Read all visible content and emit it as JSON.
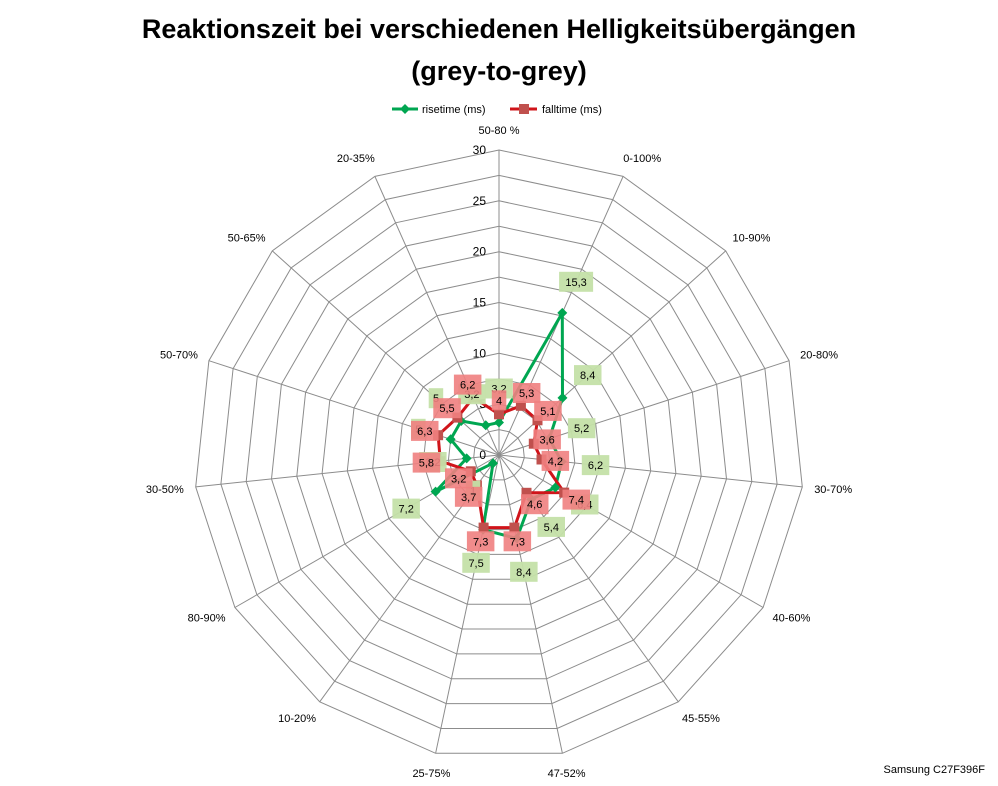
{
  "chart_data": {
    "type": "radar",
    "title_lines": [
      "Reaktionszeit bei verschiedenen Helligkeitsübergängen",
      "(grey-to-grey)"
    ],
    "categories": [
      "50-80 %",
      "0-100%",
      "10-90%",
      "20-80%",
      "30-70%",
      "40-60%",
      "45-55%",
      "47-52%",
      "25-75%",
      "10-20%",
      "80-90%",
      "30-50%",
      "50-70%",
      "50-65%",
      "20-35%"
    ],
    "rlim": [
      0,
      30
    ],
    "ticks": [
      0,
      5,
      10,
      15,
      20,
      25,
      30
    ],
    "tick_labels": [
      "0",
      "5",
      "10",
      "15",
      "20",
      "25",
      "30"
    ],
    "grid": true,
    "legend_position": "top",
    "series": [
      {
        "name": "risetime (ms)",
        "color": "#00a651",
        "label_bg": "#c4e0a8",
        "marker": "diamond",
        "values": [
          3.2,
          15.3,
          8.4,
          5.2,
          6.2,
          6.4,
          5.4,
          8.4,
          7.5,
          1,
          7.2,
          3.2,
          5,
          5,
          3.2
        ],
        "labels": [
          "3,2",
          "15,3",
          "8,4",
          "5,2",
          "6,2",
          "6,4",
          "5,4",
          "8,4",
          "7,5",
          "1",
          "7,2",
          "3,2",
          "5",
          "5",
          "3,2"
        ]
      },
      {
        "name": "falltime (ms)",
        "color": "#d0141a",
        "label_bg": "#f08080",
        "marker": "square",
        "values": [
          4,
          5.3,
          5.1,
          3.6,
          4.2,
          7.4,
          4.6,
          7.3,
          7.3,
          3.7,
          3.2,
          5.8,
          6.3,
          5.5,
          6.2
        ],
        "labels": [
          "4",
          "5,3",
          "5,1",
          "3,6",
          "4,2",
          "7,4",
          "4,6",
          "7,3",
          "7,3",
          "3,7",
          "3,2",
          "5,8",
          "6,3",
          "5,5",
          "6,2"
        ]
      }
    ]
  },
  "footer": {
    "text": "Samsung C27F396F"
  }
}
